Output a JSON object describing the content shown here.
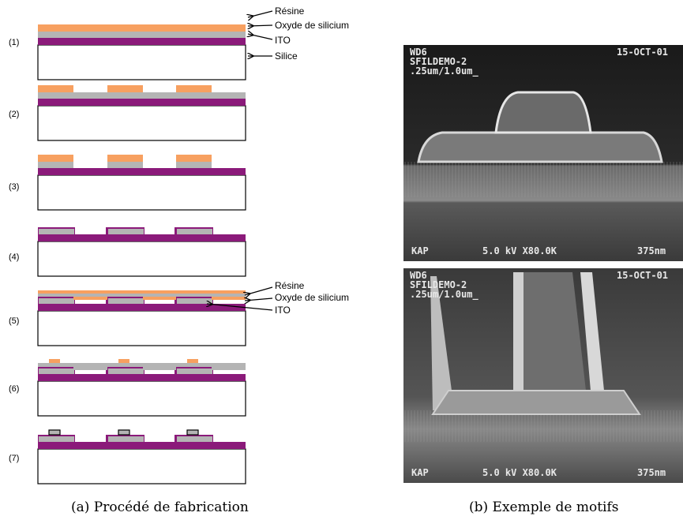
{
  "panel_a": {
    "steps": [
      "(1)",
      "(2)",
      "(3)",
      "(4)",
      "(5)",
      "(6)",
      "(7)"
    ],
    "labels_step1": [
      "Résine",
      "Oxyde de silicium",
      "ITO",
      "Silice"
    ],
    "labels_step5": [
      "Résine",
      "Oxyde de silicium",
      "ITO"
    ],
    "caption": "(a) Procédé de fabrication"
  },
  "panel_b": {
    "sem_top": {
      "top_left": [
        "WD6",
        "SFILDEMO-2",
        ".25um/1.0um_"
      ],
      "top_right": "15-OCT-01",
      "bottom_left": "KAP",
      "bottom_mid": "5.0 kV X80.0K",
      "bottom_right": "375nm"
    },
    "sem_bottom": {
      "top_left": [
        "WD6",
        "SFILDEMO-2",
        ".25um/1.0um_"
      ],
      "top_right": "15-OCT-01",
      "bottom_left": "KAP",
      "bottom_mid": "5.0 kV X80.0K",
      "bottom_right": "375nm"
    },
    "caption": "(b) Exemple de motifs"
  },
  "colors": {
    "resist": "#f7a060",
    "oxide": "#b4b4b4",
    "ito": "#8b1a7a",
    "substrate": "#ffffff"
  }
}
